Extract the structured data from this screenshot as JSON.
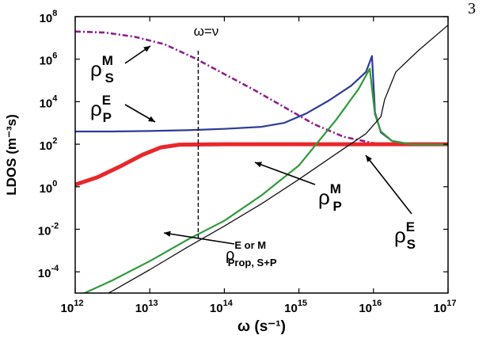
{
  "page_number": "3",
  "chart_data": {
    "type": "line",
    "title": "",
    "xlabel": "ω (s⁻¹)",
    "ylabel": "LDOS (m⁻³s)",
    "xscale": "log",
    "yscale": "log",
    "xlim_exp": [
      12,
      17
    ],
    "ylim_exp": [
      -5,
      8
    ],
    "x_tick_labels": [
      {
        "base": "10",
        "exp": "12"
      },
      {
        "base": "10",
        "exp": "13"
      },
      {
        "base": "10",
        "exp": "14"
      },
      {
        "base": "10",
        "exp": "15"
      },
      {
        "base": "10",
        "exp": "16"
      },
      {
        "base": "10",
        "exp": "17"
      }
    ],
    "y_tick_labels": [
      {
        "base": "10",
        "exp": "-4"
      },
      {
        "base": "10",
        "exp": "-2"
      },
      {
        "base": "10",
        "exp": "0"
      },
      {
        "base": "10",
        "exp": "2"
      },
      {
        "base": "10",
        "exp": "4"
      },
      {
        "base": "10",
        "exp": "6"
      },
      {
        "base": "10",
        "exp": "8"
      }
    ],
    "grid": false,
    "legend": "none (inline arrow annotations)",
    "series": [
      {
        "key": "rho_S_M",
        "color": "#8e1f8e",
        "style": "dash-dot",
        "points": [
          [
            12,
            7.3
          ],
          [
            12.4,
            7.25
          ],
          [
            12.8,
            7.05
          ],
          [
            13.2,
            6.7
          ],
          [
            13.6,
            6.05
          ],
          [
            14,
            5.3
          ],
          [
            14.4,
            4.55
          ],
          [
            14.8,
            3.75
          ],
          [
            15.2,
            2.95
          ],
          [
            15.6,
            2.35
          ],
          [
            16,
            2.05
          ],
          [
            16.5,
            1.98
          ],
          [
            17,
            1.98
          ]
        ]
      },
      {
        "key": "rho_P_E",
        "color": "#2e3b9a",
        "style": "solid",
        "points": [
          [
            12,
            2.6
          ],
          [
            12.5,
            2.6
          ],
          [
            13,
            2.62
          ],
          [
            13.5,
            2.66
          ],
          [
            14,
            2.72
          ],
          [
            14.5,
            2.82
          ],
          [
            14.8,
            3.0
          ],
          [
            15.1,
            3.45
          ],
          [
            15.4,
            4.05
          ],
          [
            15.7,
            4.75
          ],
          [
            15.9,
            5.4
          ],
          [
            15.98,
            6.15
          ],
          [
            16.02,
            3.5
          ],
          [
            16.1,
            2.55
          ],
          [
            16.25,
            2.15
          ],
          [
            16.5,
            2.0
          ],
          [
            17,
            1.98
          ]
        ]
      },
      {
        "key": "rho_S_E",
        "color": "#e8272b",
        "style": "solid-thick",
        "points": [
          [
            12,
            0.1
          ],
          [
            12.3,
            0.45
          ],
          [
            12.6,
            0.95
          ],
          [
            12.9,
            1.5
          ],
          [
            13.15,
            1.85
          ],
          [
            13.4,
            1.98
          ],
          [
            14,
            2.0
          ],
          [
            15,
            2.0
          ],
          [
            16,
            2.0
          ],
          [
            17,
            2.0
          ]
        ]
      },
      {
        "key": "rho_P_M",
        "color": "#2f9a3a",
        "style": "solid",
        "points": [
          [
            12,
            -5.2
          ],
          [
            12.5,
            -4.4
          ],
          [
            13,
            -3.5
          ],
          [
            13.5,
            -2.5
          ],
          [
            14,
            -1.6
          ],
          [
            14.5,
            -0.4
          ],
          [
            15,
            1.0
          ],
          [
            15.5,
            3.15
          ],
          [
            15.8,
            4.6
          ],
          [
            15.95,
            5.55
          ],
          [
            16.02,
            3.4
          ],
          [
            16.1,
            2.6
          ],
          [
            16.25,
            2.15
          ],
          [
            16.5,
            2.0
          ],
          [
            17,
            1.98
          ]
        ]
      },
      {
        "key": "rho_Prop",
        "color": "#111111",
        "style": "solid-thin",
        "points": [
          [
            12,
            -5.8
          ],
          [
            12.5,
            -4.9
          ],
          [
            13,
            -3.9
          ],
          [
            13.5,
            -2.85
          ],
          [
            14,
            -1.85
          ],
          [
            14.5,
            -0.8
          ],
          [
            15,
            0.35
          ],
          [
            15.5,
            1.55
          ],
          [
            15.9,
            2.5
          ],
          [
            16.1,
            3.3
          ],
          [
            16.15,
            4.1
          ],
          [
            16.3,
            5.4
          ],
          [
            16.6,
            6.4
          ],
          [
            17,
            7.6
          ]
        ]
      }
    ],
    "vline": {
      "label": "ω=ν",
      "x_exp": 13.65
    },
    "annotations": [
      {
        "key": "rho_S_M",
        "base": "ρ",
        "sup": "M",
        "sub": "S"
      },
      {
        "key": "rho_P_E",
        "base": "ρ",
        "sup": "E",
        "sub": "P"
      },
      {
        "key": "rho_P_M",
        "base": "ρ",
        "sup": "M",
        "sub": "P"
      },
      {
        "key": "rho_S_E",
        "base": "ρ",
        "sup": "E",
        "sub": "S"
      },
      {
        "key": "rho_Prop",
        "base": "ρ",
        "sup": "E or M",
        "sub": "Prop, S+P"
      }
    ]
  }
}
